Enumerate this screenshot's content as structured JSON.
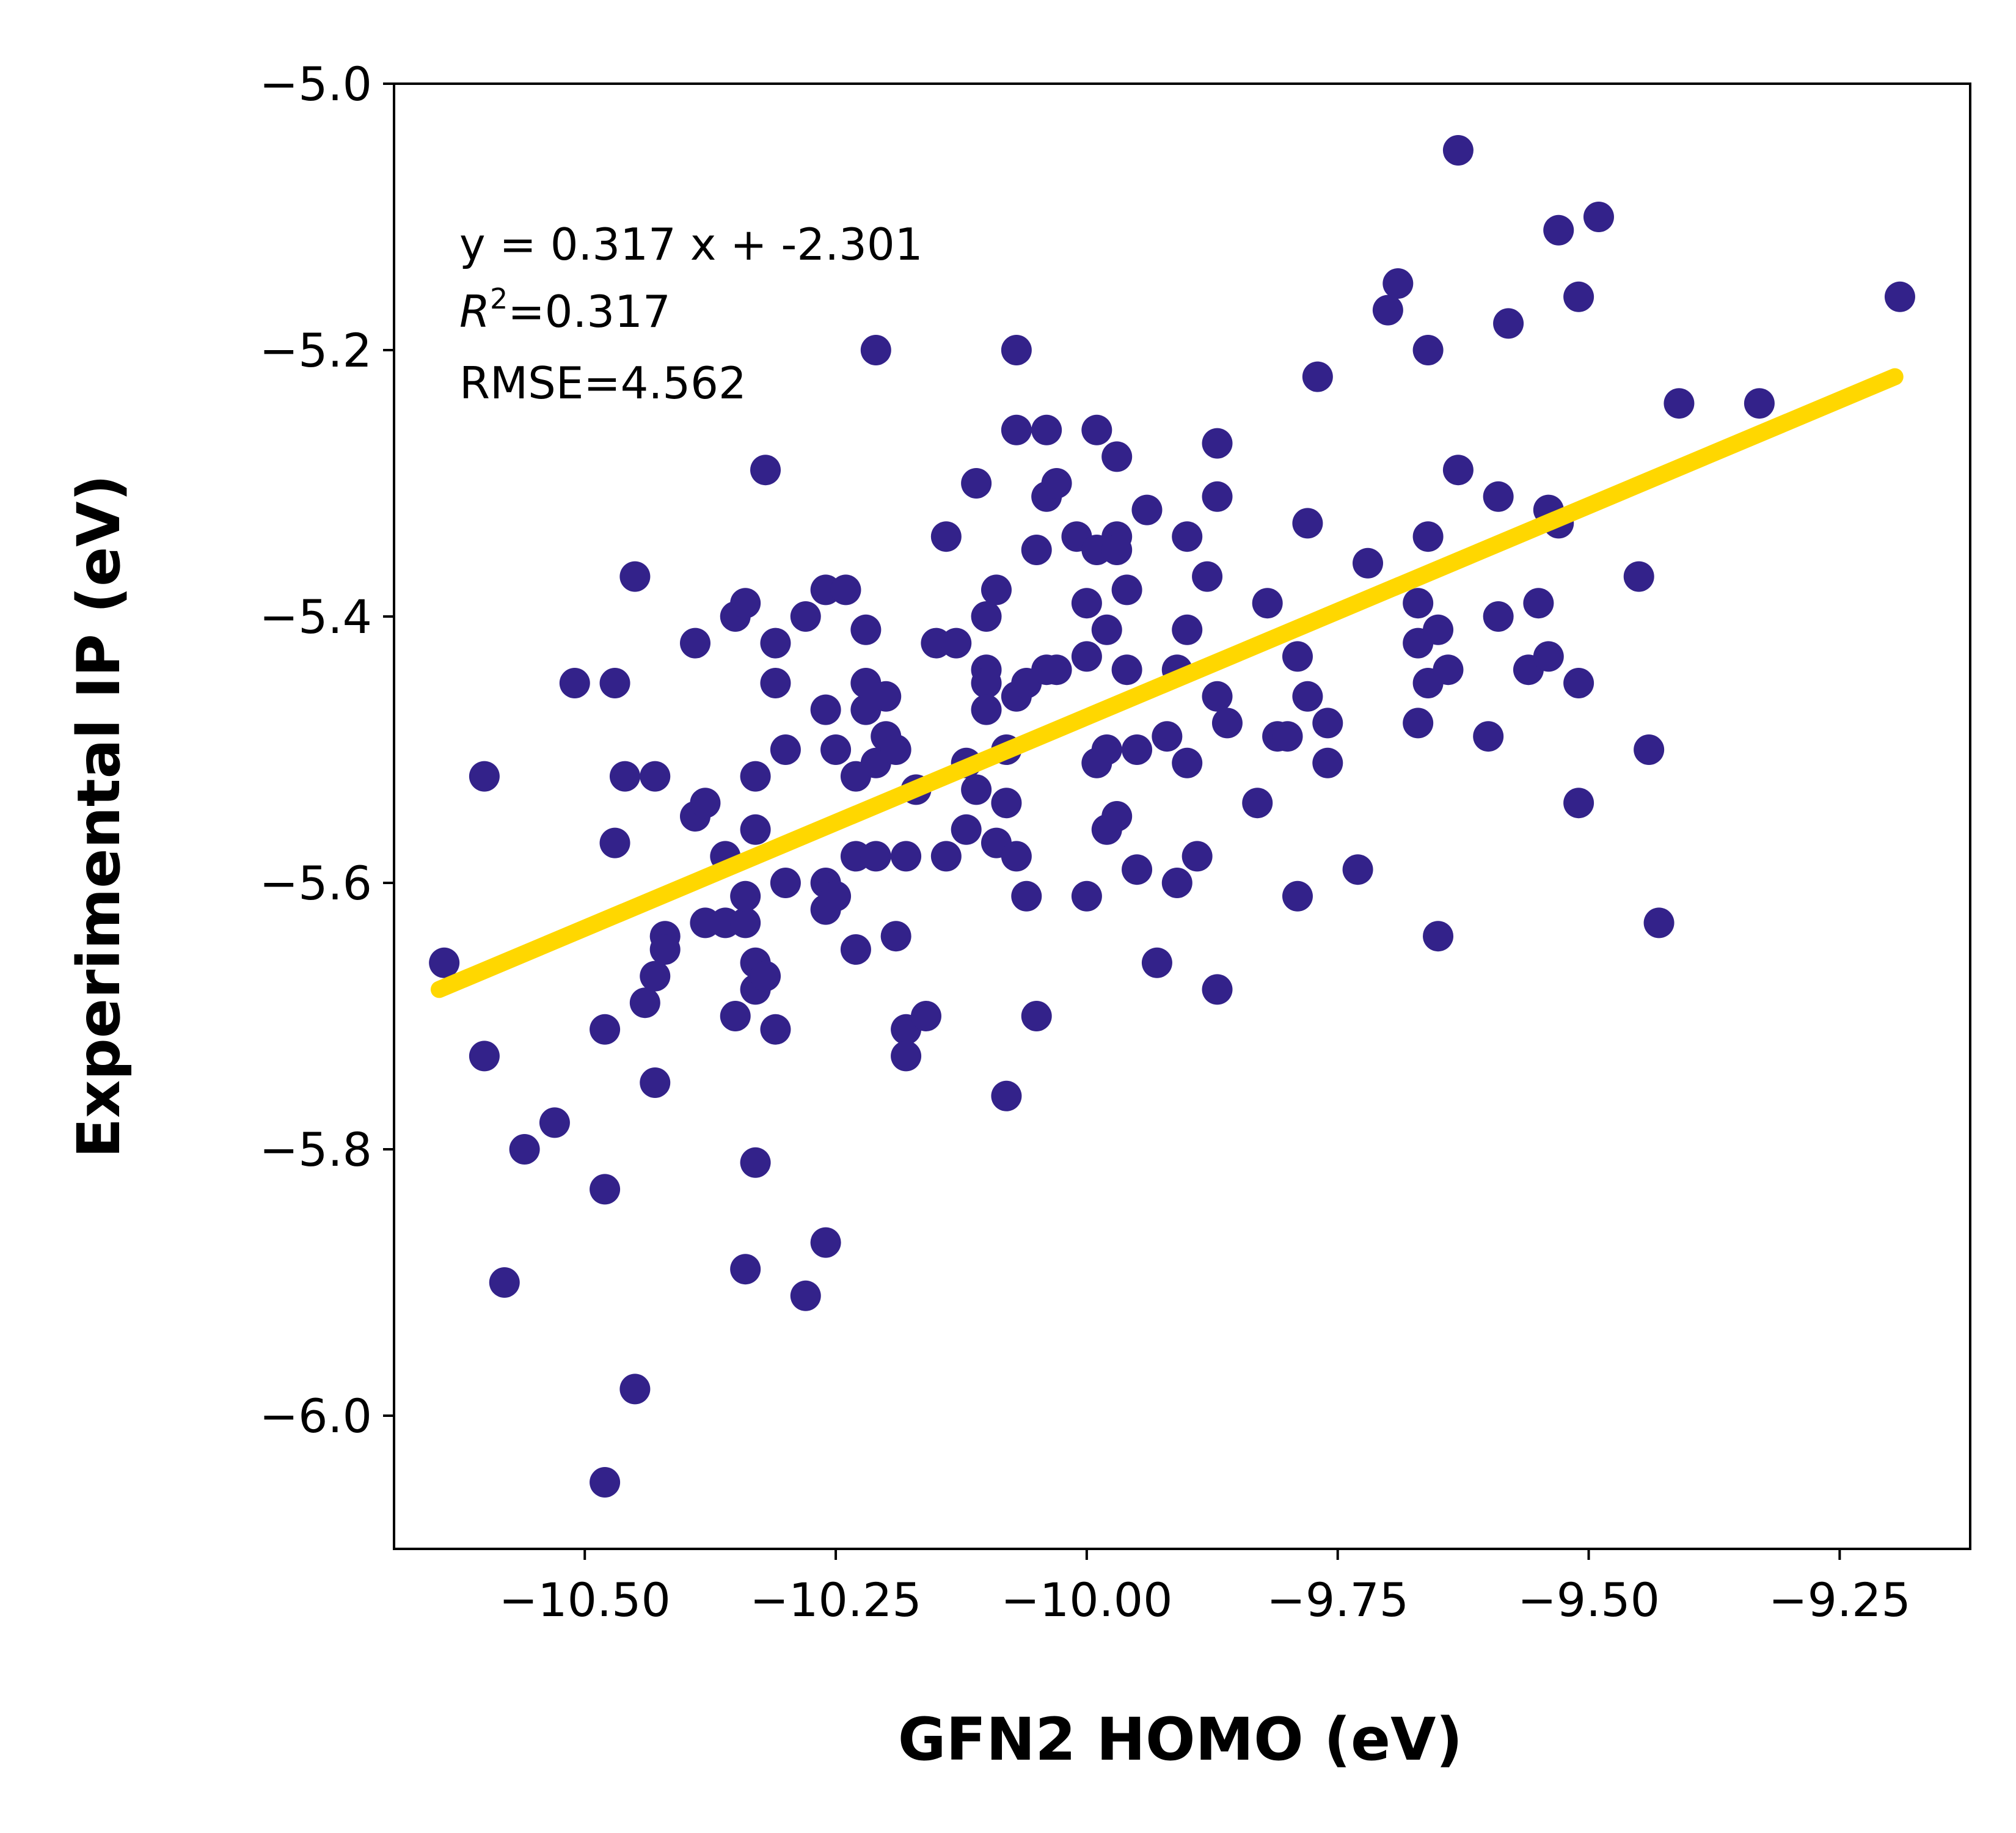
{
  "chart_data": {
    "type": "scatter",
    "title": "",
    "xlabel": "GFN2 HOMO (eV)",
    "ylabel": "Experimental IP (eV)",
    "xlim": [
      -10.69,
      -9.12
    ],
    "ylim": [
      -6.1,
      -5.0
    ],
    "xticks": [
      -10.5,
      -10.25,
      -10.0,
      -9.75,
      -9.5,
      -9.25
    ],
    "xtick_labels": [
      "−10.50",
      "−10.25",
      "−10.00",
      "−9.75",
      "−9.50",
      "−9.25"
    ],
    "yticks": [
      -5.0,
      -5.2,
      -5.4,
      -5.6,
      -5.8,
      -6.0
    ],
    "ytick_labels": [
      "−5.0",
      "−5.2",
      "−5.4",
      "−5.6",
      "−5.8",
      "−6.0"
    ],
    "grid": false,
    "colors": {
      "points": "#33228a",
      "fit_line": "#ffd700"
    },
    "annotation": {
      "equation": "y = 0.317 x + -2.301",
      "r2_symbol": "R",
      "r2_exp": "2",
      "r2_value": "=0.317",
      "rmse": "RMSE=4.562"
    },
    "fit_line": {
      "x": [
        -10.645,
        -9.195
      ],
      "y": [
        -5.68,
        -5.22
      ]
    },
    "points": [
      [
        -10.64,
        -5.66
      ],
      [
        -10.6,
        -5.52
      ],
      [
        -10.6,
        -5.73
      ],
      [
        -10.58,
        -5.9
      ],
      [
        -10.56,
        -5.8
      ],
      [
        -10.53,
        -5.78
      ],
      [
        -10.51,
        -5.45
      ],
      [
        -10.48,
        -5.71
      ],
      [
        -10.48,
        -5.83
      ],
      [
        -10.48,
        -6.05
      ],
      [
        -10.47,
        -5.45
      ],
      [
        -10.47,
        -5.57
      ],
      [
        -10.46,
        -5.52
      ],
      [
        -10.45,
        -5.37
      ],
      [
        -10.45,
        -5.98
      ],
      [
        -10.44,
        -5.69
      ],
      [
        -10.43,
        -5.67
      ],
      [
        -10.43,
        -5.75
      ],
      [
        -10.43,
        -5.52
      ],
      [
        -10.42,
        -5.64
      ],
      [
        -10.42,
        -5.65
      ],
      [
        -10.39,
        -5.55
      ],
      [
        -10.39,
        -5.42
      ],
      [
        -10.38,
        -5.54
      ],
      [
        -10.38,
        -5.63
      ],
      [
        -10.36,
        -5.58
      ],
      [
        -10.36,
        -5.63
      ],
      [
        -10.35,
        -5.7
      ],
      [
        -10.35,
        -5.4
      ],
      [
        -10.34,
        -5.63
      ],
      [
        -10.34,
        -5.61
      ],
      [
        -10.34,
        -5.39
      ],
      [
        -10.34,
        -5.89
      ],
      [
        -10.33,
        -5.68
      ],
      [
        -10.33,
        -5.81
      ],
      [
        -10.33,
        -5.56
      ],
      [
        -10.33,
        -5.52
      ],
      [
        -10.33,
        -5.66
      ],
      [
        -10.32,
        -5.67
      ],
      [
        -10.32,
        -5.29
      ],
      [
        -10.31,
        -5.71
      ],
      [
        -10.31,
        -5.42
      ],
      [
        -10.31,
        -5.45
      ],
      [
        -10.3,
        -5.5
      ],
      [
        -10.3,
        -5.6
      ],
      [
        -10.28,
        -5.91
      ],
      [
        -10.28,
        -5.4
      ],
      [
        -10.26,
        -5.47
      ],
      [
        -10.26,
        -5.38
      ],
      [
        -10.26,
        -5.6
      ],
      [
        -10.26,
        -5.62
      ],
      [
        -10.26,
        -5.87
      ],
      [
        -10.25,
        -5.61
      ],
      [
        -10.25,
        -5.5
      ],
      [
        -10.24,
        -5.38
      ],
      [
        -10.23,
        -5.58
      ],
      [
        -10.23,
        -5.52
      ],
      [
        -10.23,
        -5.65
      ],
      [
        -10.22,
        -5.47
      ],
      [
        -10.22,
        -5.41
      ],
      [
        -10.22,
        -5.45
      ],
      [
        -10.21,
        -5.51
      ],
      [
        -10.21,
        -5.58
      ],
      [
        -10.21,
        -5.2
      ],
      [
        -10.2,
        -5.49
      ],
      [
        -10.2,
        -5.46
      ],
      [
        -10.19,
        -5.64
      ],
      [
        -10.19,
        -5.5
      ],
      [
        -10.18,
        -5.58
      ],
      [
        -10.18,
        -5.71
      ],
      [
        -10.18,
        -5.73
      ],
      [
        -10.17,
        -5.53
      ],
      [
        -10.16,
        -5.7
      ],
      [
        -10.15,
        -5.42
      ],
      [
        -10.14,
        -5.58
      ],
      [
        -10.14,
        -5.34
      ],
      [
        -10.13,
        -5.42
      ],
      [
        -10.12,
        -5.56
      ],
      [
        -10.12,
        -5.51
      ],
      [
        -10.11,
        -5.3
      ],
      [
        -10.11,
        -5.53
      ],
      [
        -10.1,
        -5.44
      ],
      [
        -10.1,
        -5.45
      ],
      [
        -10.1,
        -5.47
      ],
      [
        -10.1,
        -5.4
      ],
      [
        -10.09,
        -5.57
      ],
      [
        -10.09,
        -5.38
      ],
      [
        -10.08,
        -5.5
      ],
      [
        -10.08,
        -5.54
      ],
      [
        -10.08,
        -5.76
      ],
      [
        -10.07,
        -5.46
      ],
      [
        -10.07,
        -5.58
      ],
      [
        -10.07,
        -5.26
      ],
      [
        -10.07,
        -5.2
      ],
      [
        -10.06,
        -5.61
      ],
      [
        -10.06,
        -5.45
      ],
      [
        -10.05,
        -5.7
      ],
      [
        -10.05,
        -5.35
      ],
      [
        -10.04,
        -5.44
      ],
      [
        -10.04,
        -5.31
      ],
      [
        -10.04,
        -5.26
      ],
      [
        -10.03,
        -5.3
      ],
      [
        -10.03,
        -5.44
      ],
      [
        -10.01,
        -5.34
      ],
      [
        -10.0,
        -5.39
      ],
      [
        -10.0,
        -5.43
      ],
      [
        -10.0,
        -5.61
      ],
      [
        -9.99,
        -5.35
      ],
      [
        -9.99,
        -5.26
      ],
      [
        -9.99,
        -5.51
      ],
      [
        -9.98,
        -5.56
      ],
      [
        -9.98,
        -5.41
      ],
      [
        -9.98,
        -5.5
      ],
      [
        -9.97,
        -5.55
      ],
      [
        -9.97,
        -5.28
      ],
      [
        -9.97,
        -5.34
      ],
      [
        -9.97,
        -5.35
      ],
      [
        -9.96,
        -5.44
      ],
      [
        -9.96,
        -5.38
      ],
      [
        -9.95,
        -5.59
      ],
      [
        -9.95,
        -5.5
      ],
      [
        -9.94,
        -5.32
      ],
      [
        -9.93,
        -5.66
      ],
      [
        -9.92,
        -5.49
      ],
      [
        -9.91,
        -5.6
      ],
      [
        -9.91,
        -5.44
      ],
      [
        -9.9,
        -5.41
      ],
      [
        -9.9,
        -5.34
      ],
      [
        -9.9,
        -5.51
      ],
      [
        -9.89,
        -5.58
      ],
      [
        -9.88,
        -5.37
      ],
      [
        -9.87,
        -5.27
      ],
      [
        -9.87,
        -5.31
      ],
      [
        -9.87,
        -5.68
      ],
      [
        -9.87,
        -5.46
      ],
      [
        -9.86,
        -5.48
      ],
      [
        -9.83,
        -5.54
      ],
      [
        -9.82,
        -5.39
      ],
      [
        -9.81,
        -5.49
      ],
      [
        -9.8,
        -5.49
      ],
      [
        -9.79,
        -5.43
      ],
      [
        -9.79,
        -5.61
      ],
      [
        -9.78,
        -5.33
      ],
      [
        -9.78,
        -5.46
      ],
      [
        -9.77,
        -5.22
      ],
      [
        -9.76,
        -5.48
      ],
      [
        -9.76,
        -5.51
      ],
      [
        -9.73,
        -5.59
      ],
      [
        -9.72,
        -5.36
      ],
      [
        -9.7,
        -5.17
      ],
      [
        -9.69,
        -5.15
      ],
      [
        -9.67,
        -5.39
      ],
      [
        -9.67,
        -5.42
      ],
      [
        -9.67,
        -5.48
      ],
      [
        -9.66,
        -5.2
      ],
      [
        -9.66,
        -5.34
      ],
      [
        -9.66,
        -5.45
      ],
      [
        -9.65,
        -5.41
      ],
      [
        -9.65,
        -5.64
      ],
      [
        -9.64,
        -5.44
      ],
      [
        -9.63,
        -5.05
      ],
      [
        -9.63,
        -5.29
      ],
      [
        -9.6,
        -5.49
      ],
      [
        -9.59,
        -5.31
      ],
      [
        -9.59,
        -5.4
      ],
      [
        -9.58,
        -5.18
      ],
      [
        -9.56,
        -5.44
      ],
      [
        -9.55,
        -5.39
      ],
      [
        -9.54,
        -5.32
      ],
      [
        -9.54,
        -5.43
      ],
      [
        -9.53,
        -5.33
      ],
      [
        -9.53,
        -5.11
      ],
      [
        -9.51,
        -5.16
      ],
      [
        -9.51,
        -5.45
      ],
      [
        -9.51,
        -5.54
      ],
      [
        -9.49,
        -5.1
      ],
      [
        -9.45,
        -5.37
      ],
      [
        -9.44,
        -5.5
      ],
      [
        -9.43,
        -5.63
      ],
      [
        -9.41,
        -5.24
      ],
      [
        -9.33,
        -5.24
      ],
      [
        -9.19,
        -5.16
      ]
    ]
  }
}
